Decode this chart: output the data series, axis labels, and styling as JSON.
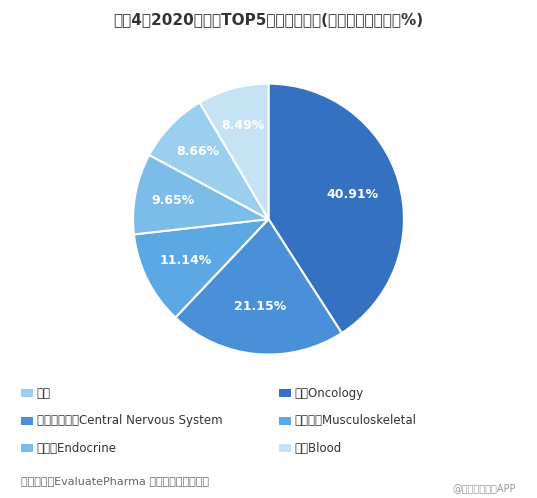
{
  "title": "图表4：2020年全球TOP5药品畅销领域(单位：十亿美元，%)",
  "slices": [
    {
      "label": "肿瘤Oncology",
      "value": 40.91,
      "color": "#3471C1",
      "pct": "40.91%"
    },
    {
      "label": "中枢神经系统Central Nervous System",
      "value": 21.15,
      "color": "#4A90D9",
      "pct": "21.15%"
    },
    {
      "label": "肌肉骨骼Musculoskeletal",
      "value": 11.14,
      "color": "#5BA8E5",
      "pct": "11.14%"
    },
    {
      "label": "内分泌Endocrine",
      "value": 9.65,
      "color": "#7BBCE8",
      "pct": "9.65%"
    },
    {
      "label": "其他",
      "value": 8.66,
      "color": "#9ACFEF",
      "pct": "8.66%"
    },
    {
      "label": "血液Blood",
      "value": 8.49,
      "color": "#C5E3F5",
      "pct": "8.49%"
    }
  ],
  "legend_left_col": [
    {
      "label": "其他",
      "color": "#9ACFEF"
    },
    {
      "label": "中枢神经系统Central Nervous System",
      "color": "#4A90D9"
    },
    {
      "label": "内分泌Endocrine",
      "color": "#7BBCE8"
    }
  ],
  "legend_right_col": [
    {
      "label": "肿瘤Oncology",
      "color": "#3471C1"
    },
    {
      "label": "肌肉骨骼Musculoskeletal",
      "color": "#5BA8E5"
    },
    {
      "label": "血液Blood",
      "color": "#C5E3F5"
    }
  ],
  "source_text": "资料来源：EvaluatePharma 前瞻产业研究院整理",
  "watermark_text": "@前瞻经济学人APP",
  "background_color": "#FFFFFF",
  "title_fontsize": 11,
  "label_fontsize": 9,
  "legend_fontsize": 8.5,
  "source_fontsize": 8
}
